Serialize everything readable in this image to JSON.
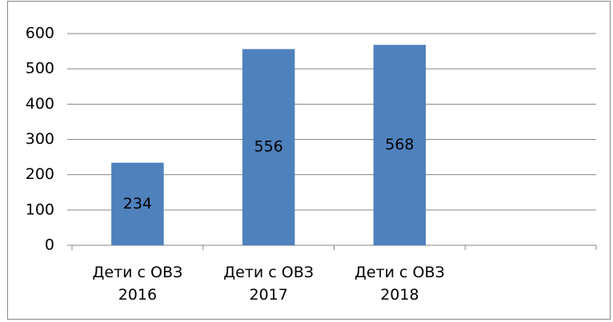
{
  "chart_data": {
    "type": "bar",
    "categories": [
      "Дети с ОВЗ 2016",
      "Дети с ОВЗ 2017",
      "Дети с ОВЗ 2018",
      null
    ],
    "values": [
      234,
      556,
      568,
      null
    ],
    "color": "#4f81bd",
    "ylim": [
      0,
      600
    ],
    "yticks": [
      0,
      100,
      200,
      300,
      400,
      500,
      600
    ],
    "grid": true
  }
}
